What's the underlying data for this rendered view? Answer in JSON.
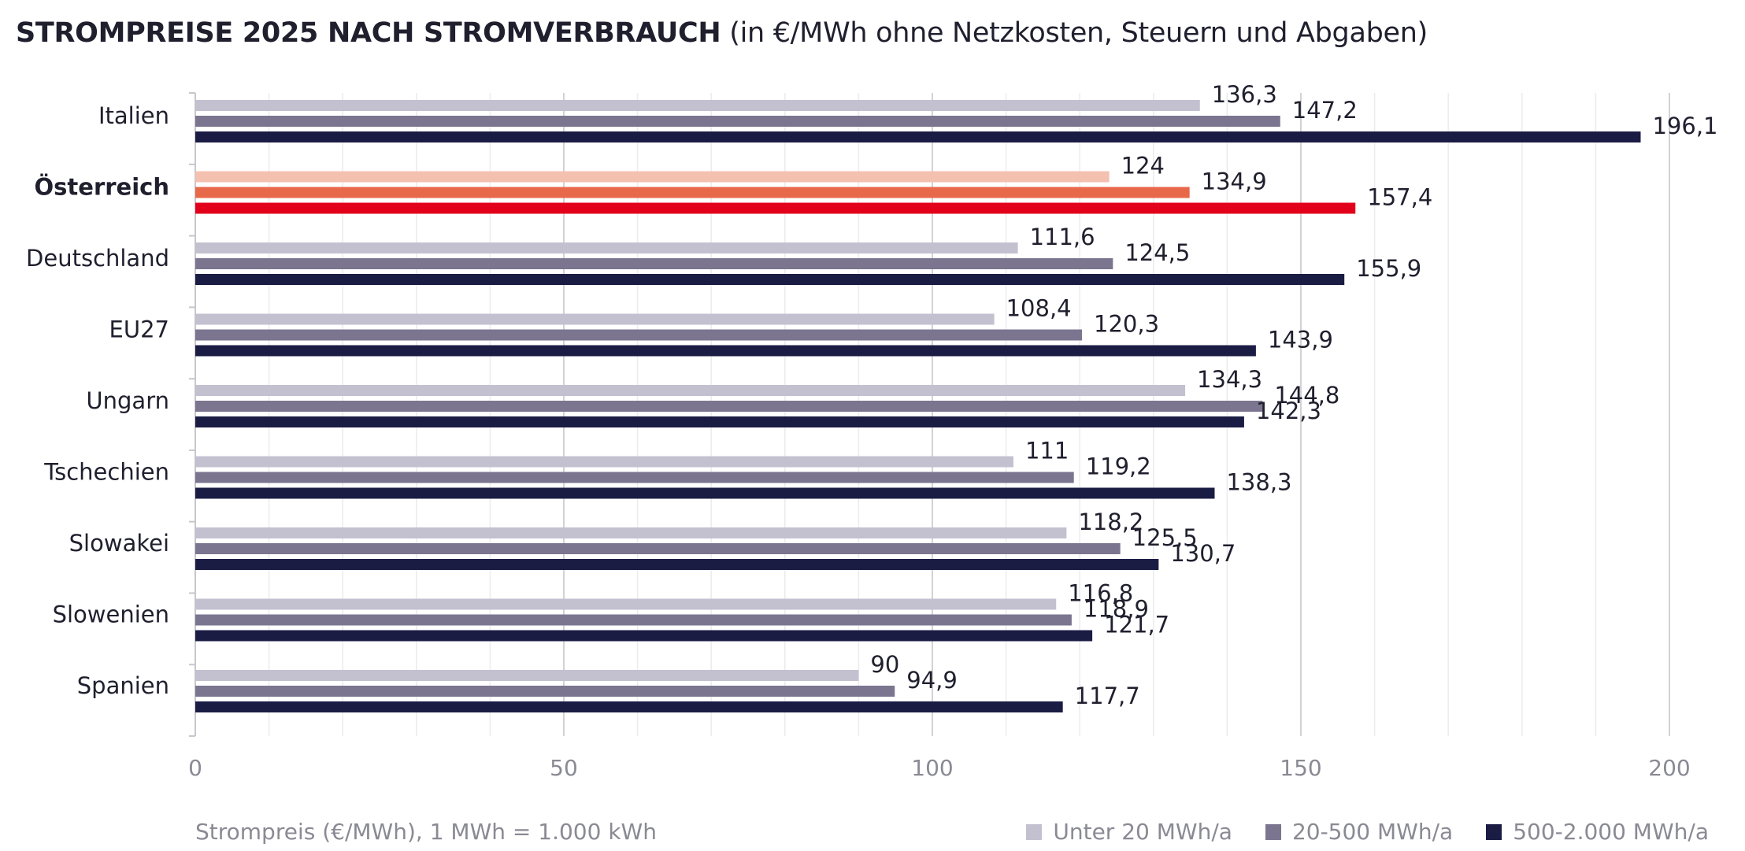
{
  "title": {
    "main": "STROMPREISE 2025 NACH STROMVERBRAUCH",
    "sub": "(in €/MWh ohne Netzkosten, Steuern und Abgaben)"
  },
  "chart_data": {
    "type": "bar",
    "orientation": "horizontal",
    "categories": [
      "Italien",
      "Österreich",
      "Deutschland",
      "EU27",
      "Ungarn",
      "Tschechien",
      "Slowakei",
      "Slowenien",
      "Spanien"
    ],
    "highlight_category": "Österreich",
    "series": [
      {
        "name": "Unter 20 MWh/a",
        "color": "#c3c0d0",
        "highlight_color": "#f4c0b0",
        "values": [
          136.3,
          124,
          111.6,
          108.4,
          134.3,
          111,
          118.2,
          116.8,
          90
        ],
        "labels": [
          "136,3",
          "124",
          "111,6",
          "108,4",
          "134,3",
          "111",
          "118,2",
          "116,8",
          "90"
        ]
      },
      {
        "name": "20-500 MWh/a",
        "color": "#7b7590",
        "highlight_color": "#e8684a",
        "values": [
          147.2,
          134.9,
          124.5,
          120.3,
          144.8,
          119.2,
          125.5,
          118.9,
          94.9
        ],
        "labels": [
          "147,2",
          "134,9",
          "124,5",
          "120,3",
          "144,8",
          "119,2",
          "125,5",
          "118,9",
          "94,9"
        ]
      },
      {
        "name": "500-2.000 MWh/a",
        "color": "#1b1c44",
        "highlight_color": "#e2001a",
        "values": [
          196.1,
          157.4,
          155.9,
          143.9,
          142.3,
          138.3,
          130.7,
          121.7,
          117.7
        ],
        "labels": [
          "196,1",
          "157,4",
          "155,9",
          "143,9",
          "142,3",
          "138,3",
          "130,7",
          "121,7",
          "117,7"
        ]
      }
    ],
    "xlim": [
      0,
      200
    ],
    "xticks": [
      0,
      50,
      100,
      150,
      200
    ],
    "xtick_labels": [
      "0",
      "50",
      "100",
      "150",
      "200"
    ],
    "xlabel": "Strompreis (€/MWh), 1 MWh = 1.000 kWh",
    "ylabel": "",
    "grid": true,
    "legend_position": "bottom-right"
  }
}
